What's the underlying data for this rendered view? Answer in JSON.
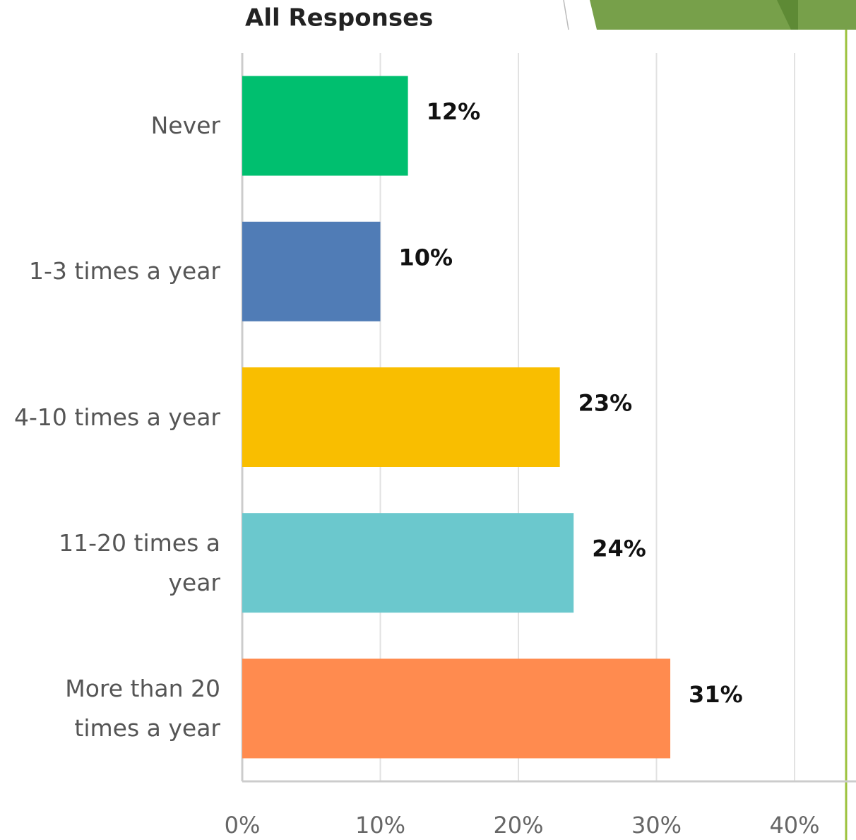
{
  "chart_data": {
    "type": "barh",
    "title": "All Responses",
    "categories": [
      "Never",
      "1-3 times a year",
      "4-10 times a year",
      "11-20 times a year",
      "More than 20 times a year"
    ],
    "values": [
      12,
      10,
      23,
      24,
      31
    ],
    "value_labels": [
      "12%",
      "10%",
      "23%",
      "24%",
      "31%"
    ],
    "colors": [
      "#00bf6f",
      "#507cb6",
      "#f9be00",
      "#6bc8cd",
      "#ff8b4f"
    ],
    "xlim": [
      0,
      44
    ],
    "xticks": [
      {
        "value": 0,
        "label": "0%"
      },
      {
        "value": 10,
        "label": "10%"
      },
      {
        "value": 20,
        "label": "20%"
      },
      {
        "value": 30,
        "label": "30%"
      },
      {
        "value": 40,
        "label": "40%"
      }
    ],
    "grid": true
  }
}
